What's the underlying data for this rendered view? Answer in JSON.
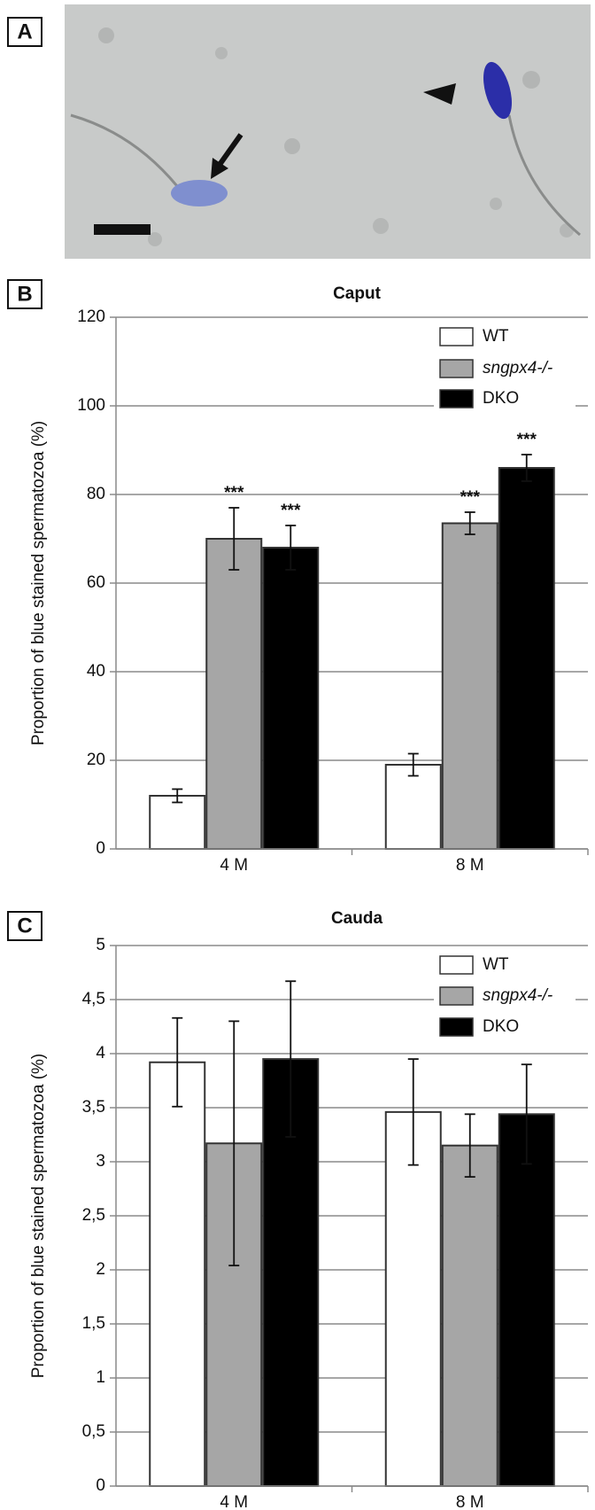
{
  "image_panel": {
    "label": "A"
  },
  "chart_data": [
    {
      "type": "bar",
      "panel_label": "B",
      "title": "Caput",
      "y_label": "Proportion of blue stained spermatozoa (%)",
      "categories": [
        "4 M",
        "8 M"
      ],
      "series": [
        {
          "name": "WT",
          "color": "#ffffff",
          "values": [
            12,
            19
          ],
          "errors": [
            1.5,
            2.5
          ]
        },
        {
          "name": "sngpx4-/-",
          "color": "#a6a6a6",
          "values": [
            70,
            73.5
          ],
          "errors": [
            7,
            2.5
          ],
          "annotations": [
            "***",
            "***"
          ]
        },
        {
          "name": "DKO",
          "color": "#000000",
          "values": [
            68,
            86
          ],
          "errors": [
            5,
            3
          ],
          "annotations": [
            "***",
            "***"
          ]
        }
      ],
      "ylim": [
        0,
        120
      ],
      "yticks": [
        0,
        20,
        40,
        60,
        80,
        100,
        120
      ],
      "grid": true,
      "legend": "top-right"
    },
    {
      "type": "bar",
      "panel_label": "C",
      "title": "Cauda",
      "y_label": "Proportion of blue stained spermatozoa (%)",
      "categories": [
        "4 M",
        "8 M"
      ],
      "series": [
        {
          "name": "WT",
          "color": "#ffffff",
          "values": [
            3.92,
            3.46
          ],
          "errors": [
            0.41,
            0.49
          ]
        },
        {
          "name": "sngpx4-/-",
          "color": "#a6a6a6",
          "values": [
            3.17,
            3.15
          ],
          "errors": [
            1.13,
            0.29
          ]
        },
        {
          "name": "DKO",
          "color": "#000000",
          "values": [
            3.95,
            3.44
          ],
          "errors": [
            0.72,
            0.46
          ]
        }
      ],
      "ylim": [
        0,
        5
      ],
      "yticks": [
        0,
        {
          "value": 0.5,
          "label": "0,5"
        },
        1,
        {
          "value": 1.5,
          "label": "1,5"
        },
        2,
        {
          "value": 2.5,
          "label": "2,5"
        },
        3,
        {
          "value": 3.5,
          "label": "3,5"
        },
        4,
        {
          "value": 4.5,
          "label": "4,5"
        },
        5
      ],
      "grid": true,
      "legend": "top-right"
    }
  ]
}
